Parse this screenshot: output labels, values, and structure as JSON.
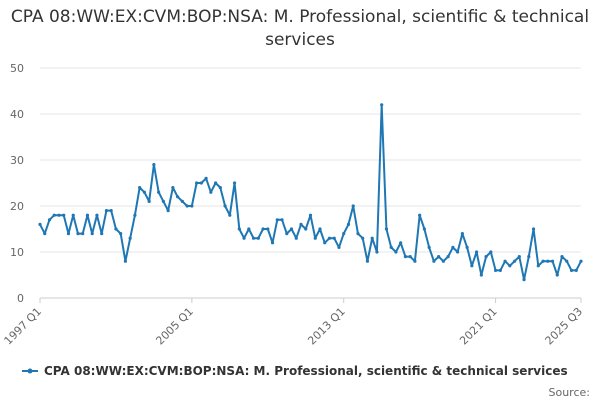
{
  "chart_data": {
    "type": "line",
    "title": "CPA 08:WW:EX:CVM:BOP:NSA: M. Professional, scientific & technical services",
    "series": [
      {
        "name": "CPA 08:WW:EX:CVM:BOP:NSA: M. Professional, scientific & technical services",
        "color": "#1f77b4",
        "values": [
          16,
          14,
          17,
          18,
          18,
          18,
          14,
          18,
          14,
          14,
          18,
          14,
          18,
          14,
          19,
          19,
          15,
          14,
          8,
          13,
          18,
          24,
          23,
          21,
          29,
          23,
          21,
          19,
          24,
          22,
          21,
          20,
          20,
          25,
          25,
          26,
          23,
          25,
          24,
          20,
          18,
          25,
          15,
          13,
          15,
          13,
          13,
          15,
          15,
          12,
          17,
          17,
          14,
          15,
          13,
          16,
          15,
          18,
          13,
          15,
          12,
          13,
          13,
          11,
          14,
          16,
          20,
          14,
          13,
          8,
          13,
          10,
          42,
          15,
          11,
          10,
          12,
          9,
          9,
          8,
          18,
          15,
          11,
          8,
          9,
          8,
          9,
          11,
          10,
          14,
          11,
          7,
          10,
          5,
          9,
          10,
          6,
          6,
          8,
          7,
          8,
          9,
          4,
          9,
          15,
          7,
          8,
          8,
          8,
          5,
          9,
          8,
          6,
          6,
          8
        ]
      }
    ],
    "x_tick_labels": [
      "1997 Q1",
      "2005 Q1",
      "2013 Q1",
      "2021 Q1",
      "2025 Q3"
    ],
    "y_ticks": [
      0,
      10,
      20,
      30,
      40,
      50
    ],
    "ylim": [
      0,
      50
    ],
    "grid": "horizontal",
    "legend_position": "bottom",
    "source_label": "Source:"
  }
}
